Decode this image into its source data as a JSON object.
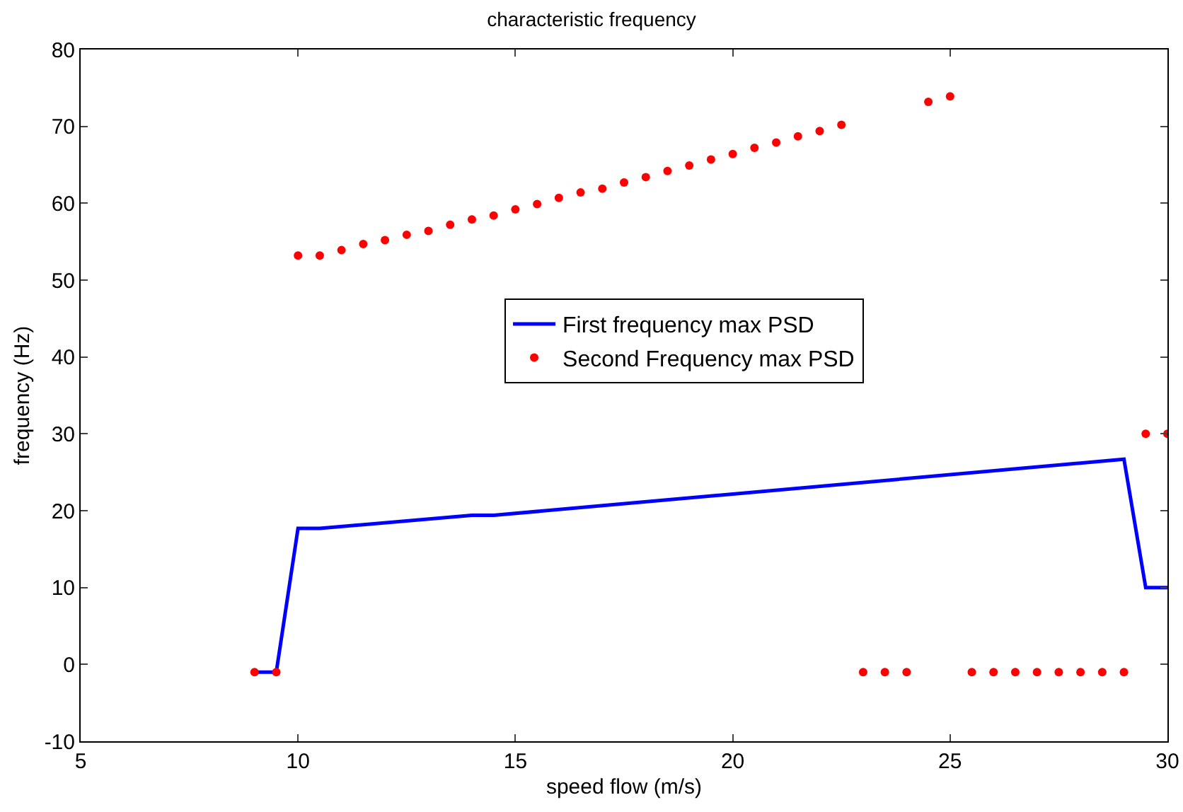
{
  "chart_data": {
    "type": "line",
    "title": "characteristic frequency",
    "xlabel": "speed flow (m/s)",
    "ylabel": "frequency (Hz)",
    "xlim": [
      5,
      30
    ],
    "xticks": [
      5,
      10,
      15,
      20,
      25,
      30
    ],
    "ylim": [
      -10,
      80
    ],
    "yticks": [
      -10,
      0,
      10,
      20,
      30,
      40,
      50,
      60,
      70,
      80
    ],
    "grid": false,
    "legend": "center",
    "series": [
      {
        "name": "First frequency max PSD",
        "color": "#0000ff",
        "line_style": "solid",
        "marker": "none",
        "x": [
          9,
          9.5,
          10,
          10.5,
          14,
          14.5,
          29,
          29.5,
          30
        ],
        "values": [
          -1,
          -1,
          17.7,
          17.7,
          19.4,
          19.4,
          26.7,
          10,
          10
        ]
      },
      {
        "name": "Second Frequency max PSD",
        "type": "scatter",
        "color": "#ff0000",
        "marker": "circle",
        "x": [
          9,
          9.5,
          10,
          10.5,
          11,
          11.5,
          12,
          12.5,
          13,
          13.5,
          14,
          14.5,
          15,
          15.5,
          16,
          16.5,
          17,
          17.5,
          18,
          18.5,
          19,
          19.5,
          20,
          20.5,
          21,
          21.5,
          22,
          22.5,
          23,
          23.5,
          24,
          24.5,
          25,
          25.5,
          26,
          26.5,
          27,
          27.5,
          28,
          28.5,
          29,
          29.5,
          30
        ],
        "values": [
          -1,
          -1,
          53.2,
          53.2,
          53.9,
          54.7,
          55.2,
          55.9,
          56.4,
          57.2,
          57.9,
          58.4,
          59.2,
          59.9,
          60.7,
          61.4,
          61.9,
          62.7,
          63.4,
          64.2,
          64.9,
          65.7,
          66.4,
          67.2,
          67.9,
          68.7,
          69.4,
          70.2,
          -1,
          -1,
          -1,
          73.2,
          73.9,
          -1,
          -1,
          -1,
          -1,
          -1,
          -1,
          -1,
          -1,
          30,
          30
        ]
      }
    ]
  }
}
